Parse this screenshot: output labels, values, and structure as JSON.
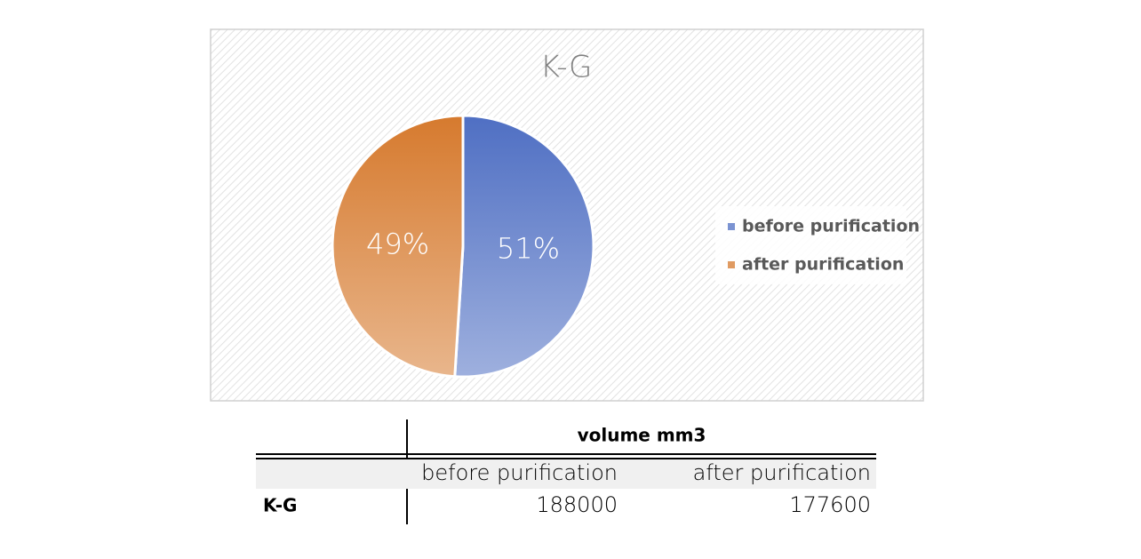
{
  "chart_data": {
    "type": "pie",
    "title": "K-G",
    "categories": [
      "before purification",
      "after purification"
    ],
    "values": [
      51,
      49
    ],
    "value_labels": [
      "51%",
      "49%"
    ],
    "colors": [
      "#4f6fc3",
      "#d67a2e"
    ],
    "legend": "right"
  },
  "table": {
    "header": "volume mm3",
    "columns": [
      "before purification",
      "after purification"
    ],
    "rows": [
      [
        "K-G",
        "188000",
        "177600"
      ]
    ]
  }
}
